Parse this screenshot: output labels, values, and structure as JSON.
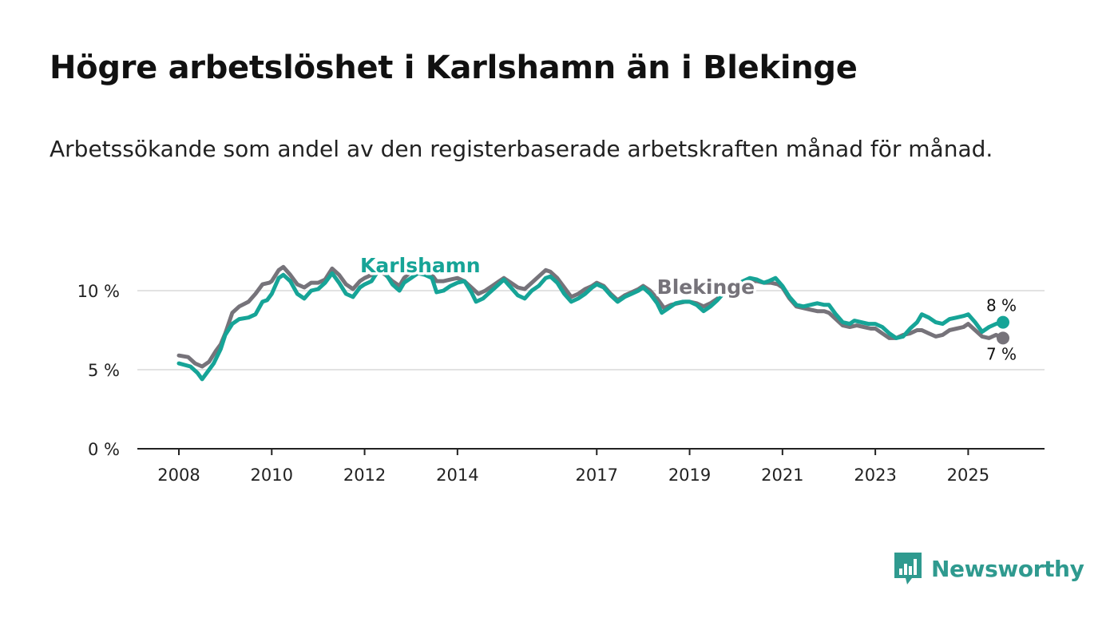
{
  "title": "Högre arbetslöshet i Karlshamn än i Blekinge",
  "subtitle": "Arbetssökande som andel av den registerbaserade arbetskraften månad för månad.",
  "brand": {
    "name": "Newsworthy",
    "icon": "newsworthy-logo-icon"
  },
  "colors": {
    "karlshamn": "#16a497",
    "blekinge": "#76737a",
    "grid": "#d9d9d9",
    "axis": "#222222",
    "brand": "#2f9a8f"
  },
  "chart_data": {
    "type": "line",
    "title": "Högre arbetslöshet i Karlshamn än i Blekinge",
    "subtitle": "Arbetssökande som andel av den registerbaserade arbetskraften månad för månad.",
    "xlabel": "",
    "ylabel": "",
    "x_range": [
      2008.0,
      2025.75
    ],
    "ylim": [
      0,
      12
    ],
    "y_ticks": [
      0,
      5,
      10
    ],
    "y_tick_labels": [
      "0 %",
      "5 %",
      "10 %"
    ],
    "x_ticks": [
      2008,
      2010,
      2012,
      2014,
      2017,
      2019,
      2021,
      2023,
      2025
    ],
    "x_tick_labels": [
      "2008",
      "2010",
      "2012",
      "2014",
      "2017",
      "2019",
      "2021",
      "2023",
      "2025"
    ],
    "grid": true,
    "legend": "inline labels",
    "series": [
      {
        "name": "Karlshamn",
        "label": "Karlshamn",
        "end_label": "8 %",
        "points": [
          [
            2008.0,
            5.4
          ],
          [
            2008.25,
            5.2
          ],
          [
            2008.4,
            4.8
          ],
          [
            2008.5,
            4.4
          ],
          [
            2008.6,
            4.8
          ],
          [
            2008.75,
            5.4
          ],
          [
            2008.9,
            6.3
          ],
          [
            2009.0,
            7.2
          ],
          [
            2009.15,
            7.9
          ],
          [
            2009.3,
            8.2
          ],
          [
            2009.5,
            8.3
          ],
          [
            2009.65,
            8.5
          ],
          [
            2009.8,
            9.3
          ],
          [
            2009.9,
            9.4
          ],
          [
            2010.0,
            9.8
          ],
          [
            2010.15,
            10.8
          ],
          [
            2010.25,
            11.0
          ],
          [
            2010.4,
            10.6
          ],
          [
            2010.55,
            9.8
          ],
          [
            2010.7,
            9.5
          ],
          [
            2010.85,
            10.0
          ],
          [
            2011.0,
            10.1
          ],
          [
            2011.15,
            10.5
          ],
          [
            2011.3,
            11.1
          ],
          [
            2011.45,
            10.5
          ],
          [
            2011.6,
            9.8
          ],
          [
            2011.75,
            9.6
          ],
          [
            2011.9,
            10.2
          ],
          [
            2012.0,
            10.4
          ],
          [
            2012.15,
            10.6
          ],
          [
            2012.3,
            11.3
          ],
          [
            2012.45,
            11.1
          ],
          [
            2012.6,
            10.4
          ],
          [
            2012.75,
            10.0
          ],
          [
            2012.85,
            10.5
          ],
          [
            2013.0,
            10.8
          ],
          [
            2013.15,
            11.1
          ],
          [
            2013.3,
            11.0
          ],
          [
            2013.45,
            10.8
          ],
          [
            2013.55,
            9.9
          ],
          [
            2013.7,
            10.0
          ],
          [
            2013.85,
            10.3
          ],
          [
            2014.0,
            10.5
          ],
          [
            2014.15,
            10.6
          ],
          [
            2014.3,
            9.9
          ],
          [
            2014.4,
            9.3
          ],
          [
            2014.55,
            9.5
          ],
          [
            2014.7,
            9.9
          ],
          [
            2014.85,
            10.3
          ],
          [
            2015.0,
            10.7
          ],
          [
            2015.15,
            10.2
          ],
          [
            2015.3,
            9.7
          ],
          [
            2015.45,
            9.5
          ],
          [
            2015.6,
            10.0
          ],
          [
            2015.75,
            10.3
          ],
          [
            2015.9,
            10.8
          ],
          [
            2016.0,
            10.9
          ],
          [
            2016.15,
            10.5
          ],
          [
            2016.3,
            9.8
          ],
          [
            2016.45,
            9.3
          ],
          [
            2016.6,
            9.5
          ],
          [
            2016.75,
            9.8
          ],
          [
            2016.9,
            10.2
          ],
          [
            2017.0,
            10.4
          ],
          [
            2017.15,
            10.2
          ],
          [
            2017.3,
            9.7
          ],
          [
            2017.45,
            9.3
          ],
          [
            2017.6,
            9.6
          ],
          [
            2017.75,
            9.8
          ],
          [
            2017.9,
            10.0
          ],
          [
            2018.0,
            10.2
          ],
          [
            2018.15,
            9.8
          ],
          [
            2018.3,
            9.2
          ],
          [
            2018.4,
            8.6
          ],
          [
            2018.55,
            8.9
          ],
          [
            2018.7,
            9.2
          ],
          [
            2018.85,
            9.3
          ],
          [
            2019.0,
            9.3
          ],
          [
            2019.15,
            9.1
          ],
          [
            2019.3,
            8.7
          ],
          [
            2019.45,
            9.0
          ],
          [
            2019.6,
            9.4
          ],
          [
            2019.75,
            9.9
          ],
          [
            2019.9,
            10.1
          ],
          [
            2020.0,
            10.3
          ],
          [
            2020.15,
            10.6
          ],
          [
            2020.3,
            10.8
          ],
          [
            2020.45,
            10.7
          ],
          [
            2020.6,
            10.5
          ],
          [
            2020.7,
            10.6
          ],
          [
            2020.85,
            10.8
          ],
          [
            2021.0,
            10.3
          ],
          [
            2021.15,
            9.6
          ],
          [
            2021.3,
            9.1
          ],
          [
            2021.45,
            9.0
          ],
          [
            2021.6,
            9.1
          ],
          [
            2021.75,
            9.2
          ],
          [
            2021.9,
            9.1
          ],
          [
            2022.0,
            9.1
          ],
          [
            2022.15,
            8.5
          ],
          [
            2022.3,
            8.0
          ],
          [
            2022.45,
            7.9
          ],
          [
            2022.55,
            8.1
          ],
          [
            2022.7,
            8.0
          ],
          [
            2022.85,
            7.9
          ],
          [
            2023.0,
            7.9
          ],
          [
            2023.15,
            7.7
          ],
          [
            2023.3,
            7.3
          ],
          [
            2023.45,
            7.0
          ],
          [
            2023.6,
            7.1
          ],
          [
            2023.75,
            7.6
          ],
          [
            2023.9,
            8.0
          ],
          [
            2024.0,
            8.5
          ],
          [
            2024.15,
            8.3
          ],
          [
            2024.3,
            8.0
          ],
          [
            2024.45,
            7.9
          ],
          [
            2024.6,
            8.2
          ],
          [
            2024.75,
            8.3
          ],
          [
            2024.9,
            8.4
          ],
          [
            2025.0,
            8.5
          ],
          [
            2025.15,
            8.0
          ],
          [
            2025.3,
            7.4
          ],
          [
            2025.45,
            7.7
          ],
          [
            2025.6,
            7.9
          ],
          [
            2025.75,
            8.0
          ]
        ]
      },
      {
        "name": "Blekinge",
        "label": "Blekinge",
        "end_label": "7 %",
        "points": [
          [
            2008.0,
            5.9
          ],
          [
            2008.2,
            5.8
          ],
          [
            2008.35,
            5.4
          ],
          [
            2008.5,
            5.2
          ],
          [
            2008.65,
            5.5
          ],
          [
            2008.8,
            6.2
          ],
          [
            2008.9,
            6.6
          ],
          [
            2009.0,
            7.3
          ],
          [
            2009.15,
            8.6
          ],
          [
            2009.3,
            9.0
          ],
          [
            2009.5,
            9.3
          ],
          [
            2009.65,
            9.8
          ],
          [
            2009.8,
            10.4
          ],
          [
            2009.95,
            10.5
          ],
          [
            2010.0,
            10.6
          ],
          [
            2010.15,
            11.3
          ],
          [
            2010.25,
            11.5
          ],
          [
            2010.4,
            11.0
          ],
          [
            2010.55,
            10.4
          ],
          [
            2010.7,
            10.2
          ],
          [
            2010.85,
            10.5
          ],
          [
            2011.0,
            10.5
          ],
          [
            2011.15,
            10.7
          ],
          [
            2011.3,
            11.4
          ],
          [
            2011.45,
            11.0
          ],
          [
            2011.6,
            10.4
          ],
          [
            2011.75,
            10.1
          ],
          [
            2011.9,
            10.6
          ],
          [
            2012.0,
            10.8
          ],
          [
            2012.15,
            11.0
          ],
          [
            2012.3,
            11.3
          ],
          [
            2012.45,
            11.0
          ],
          [
            2012.6,
            10.6
          ],
          [
            2012.75,
            10.3
          ],
          [
            2012.85,
            10.8
          ],
          [
            2013.0,
            11.2
          ],
          [
            2013.15,
            11.4
          ],
          [
            2013.3,
            11.3
          ],
          [
            2013.45,
            11.0
          ],
          [
            2013.55,
            10.6
          ],
          [
            2013.7,
            10.6
          ],
          [
            2013.85,
            10.7
          ],
          [
            2014.0,
            10.8
          ],
          [
            2014.15,
            10.6
          ],
          [
            2014.3,
            10.2
          ],
          [
            2014.45,
            9.8
          ],
          [
            2014.6,
            10.0
          ],
          [
            2014.75,
            10.3
          ],
          [
            2014.9,
            10.6
          ],
          [
            2015.0,
            10.8
          ],
          [
            2015.15,
            10.5
          ],
          [
            2015.3,
            10.2
          ],
          [
            2015.45,
            10.1
          ],
          [
            2015.6,
            10.5
          ],
          [
            2015.75,
            10.9
          ],
          [
            2015.9,
            11.3
          ],
          [
            2016.0,
            11.2
          ],
          [
            2016.15,
            10.8
          ],
          [
            2016.3,
            10.2
          ],
          [
            2016.45,
            9.6
          ],
          [
            2016.6,
            9.8
          ],
          [
            2016.75,
            10.1
          ],
          [
            2016.9,
            10.3
          ],
          [
            2017.0,
            10.5
          ],
          [
            2017.15,
            10.3
          ],
          [
            2017.3,
            9.8
          ],
          [
            2017.45,
            9.4
          ],
          [
            2017.6,
            9.7
          ],
          [
            2017.75,
            9.9
          ],
          [
            2017.9,
            10.1
          ],
          [
            2018.0,
            10.3
          ],
          [
            2018.15,
            10.0
          ],
          [
            2018.3,
            9.5
          ],
          [
            2018.45,
            8.9
          ],
          [
            2018.6,
            9.1
          ],
          [
            2018.75,
            9.2
          ],
          [
            2018.9,
            9.3
          ],
          [
            2019.0,
            9.3
          ],
          [
            2019.15,
            9.2
          ],
          [
            2019.3,
            9.0
          ],
          [
            2019.45,
            9.2
          ],
          [
            2019.6,
            9.5
          ],
          [
            2019.75,
            9.9
          ],
          [
            2019.9,
            10.1
          ],
          [
            2020.0,
            10.3
          ],
          [
            2020.15,
            10.5
          ],
          [
            2020.3,
            10.6
          ],
          [
            2020.45,
            10.6
          ],
          [
            2020.6,
            10.5
          ],
          [
            2020.75,
            10.5
          ],
          [
            2020.9,
            10.4
          ],
          [
            2021.0,
            10.2
          ],
          [
            2021.15,
            9.5
          ],
          [
            2021.3,
            9.0
          ],
          [
            2021.45,
            8.9
          ],
          [
            2021.6,
            8.8
          ],
          [
            2021.75,
            8.7
          ],
          [
            2021.9,
            8.7
          ],
          [
            2022.0,
            8.6
          ],
          [
            2022.15,
            8.2
          ],
          [
            2022.3,
            7.8
          ],
          [
            2022.45,
            7.7
          ],
          [
            2022.6,
            7.8
          ],
          [
            2022.75,
            7.7
          ],
          [
            2022.9,
            7.6
          ],
          [
            2023.0,
            7.6
          ],
          [
            2023.15,
            7.3
          ],
          [
            2023.3,
            7.0
          ],
          [
            2023.45,
            7.0
          ],
          [
            2023.6,
            7.2
          ],
          [
            2023.75,
            7.3
          ],
          [
            2023.9,
            7.5
          ],
          [
            2024.0,
            7.5
          ],
          [
            2024.15,
            7.3
          ],
          [
            2024.3,
            7.1
          ],
          [
            2024.45,
            7.2
          ],
          [
            2024.6,
            7.5
          ],
          [
            2024.75,
            7.6
          ],
          [
            2024.9,
            7.7
          ],
          [
            2025.0,
            7.9
          ],
          [
            2025.15,
            7.5
          ],
          [
            2025.3,
            7.1
          ],
          [
            2025.45,
            7.0
          ],
          [
            2025.6,
            7.2
          ],
          [
            2025.75,
            7.0
          ]
        ]
      }
    ]
  }
}
